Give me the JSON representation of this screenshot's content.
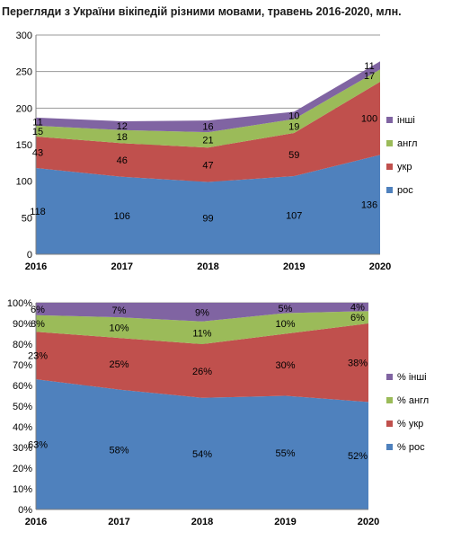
{
  "title": "Перегляди з України вікіпедій різними мовами, травень 2016-2020, млн.",
  "colors": {
    "рос": "#4F81BD",
    "укр": "#C0504D",
    "англ": "#9BBB59",
    "інші": "#8064A2"
  },
  "chart_data": [
    {
      "type": "area",
      "stacked": true,
      "categories": [
        "2016",
        "2017",
        "2018",
        "2019",
        "2020"
      ],
      "ylim": [
        0,
        300
      ],
      "yticks": [
        "0",
        "50",
        "100",
        "150",
        "200",
        "250",
        "300"
      ],
      "grid": true,
      "legend": "right",
      "series": [
        {
          "name": "рос",
          "values": [
            118,
            106,
            99,
            107,
            136
          ],
          "labels": [
            "118",
            "106",
            "99",
            "107",
            "136"
          ]
        },
        {
          "name": "укр",
          "values": [
            43,
            46,
            47,
            59,
            100
          ],
          "labels": [
            "43",
            "46",
            "47",
            "59",
            "100"
          ]
        },
        {
          "name": "англ",
          "values": [
            15,
            18,
            21,
            19,
            17
          ],
          "labels": [
            "15",
            "18",
            "21",
            "19",
            "17"
          ]
        },
        {
          "name": "інші",
          "values": [
            11,
            12,
            16,
            10,
            11
          ],
          "labels": [
            "11",
            "12",
            "16",
            "10",
            "11"
          ]
        }
      ]
    },
    {
      "type": "area",
      "stacked": true,
      "categories": [
        "2016",
        "2017",
        "2018",
        "2019",
        "2020"
      ],
      "ylim": [
        0,
        100
      ],
      "yticks": [
        "0%",
        "10%",
        "20%",
        "30%",
        "40%",
        "50%",
        "60%",
        "70%",
        "80%",
        "90%",
        "100%"
      ],
      "grid": true,
      "legend": "right",
      "series": [
        {
          "name": "% рос",
          "values": [
            63,
            58,
            54,
            55,
            52
          ],
          "labels": [
            "63%",
            "58%",
            "54%",
            "55%",
            "52%"
          ]
        },
        {
          "name": "% укр",
          "values": [
            23,
            25,
            26,
            30,
            38
          ],
          "labels": [
            "23%",
            "25%",
            "26%",
            "30%",
            "38%"
          ]
        },
        {
          "name": "% англ",
          "values": [
            8,
            10,
            11,
            10,
            6
          ],
          "labels": [
            "8%",
            "10%",
            "11%",
            "10%",
            "6%"
          ]
        },
        {
          "name": "% інші",
          "values": [
            6,
            7,
            9,
            5,
            4
          ],
          "labels": [
            "6%",
            "7%",
            "9%",
            "5%",
            "4%"
          ]
        }
      ]
    }
  ]
}
